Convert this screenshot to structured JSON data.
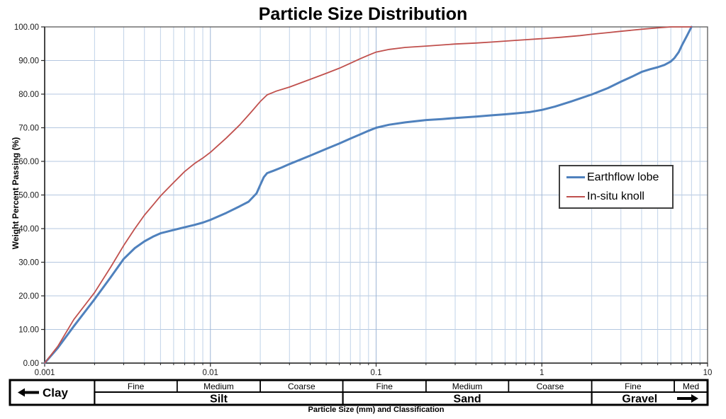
{
  "title": "Particle Size Distribution",
  "y_axis": {
    "title": "Weight Percent Passing (%)",
    "tick_labels": [
      "0.00",
      "10.00",
      "20.00",
      "30.00",
      "40.00",
      "50.00",
      "60.00",
      "70.00",
      "80.00",
      "90.00",
      "100.00"
    ],
    "tick_values": [
      0,
      10,
      20,
      30,
      40,
      50,
      60,
      70,
      80,
      90,
      100
    ]
  },
  "x_axis": {
    "title": "Particle Size (mm) and Classification",
    "tick_labels": [
      "0.001",
      "0.01",
      "0.1",
      "1",
      "10"
    ],
    "tick_values": [
      0.001,
      0.01,
      0.1,
      1,
      10
    ],
    "scale": "log"
  },
  "classification": {
    "groups": [
      {
        "label": "Clay",
        "arrow": "left",
        "from": null,
        "to": 0.002,
        "subs": []
      },
      {
        "label": "Silt",
        "from": 0.002,
        "to": 0.063,
        "subs": [
          {
            "label": "Fine",
            "to": 0.0063
          },
          {
            "label": "Medium",
            "to": 0.02
          },
          {
            "label": "Coarse",
            "to": 0.063
          }
        ]
      },
      {
        "label": "Sand",
        "from": 0.063,
        "to": 2,
        "subs": [
          {
            "label": "Fine",
            "to": 0.2
          },
          {
            "label": "Medium",
            "to": 0.63
          },
          {
            "label": "Coarse",
            "to": 2
          }
        ]
      },
      {
        "label": "Gravel",
        "arrow": "right",
        "from": 2,
        "to": 10,
        "subs": [
          {
            "label": "Fine",
            "to": 6.3
          },
          {
            "label": "Med",
            "to": 10
          }
        ]
      }
    ]
  },
  "colors": {
    "grid_minor": "#c0d2e8",
    "grid_major": "#9fb6d6",
    "grid_horizontal": "#b4c7e0",
    "plot_border": "#595959",
    "axis": "#262626",
    "table_border": "#000000",
    "text": "#000000"
  },
  "chart_data": {
    "type": "line",
    "title": "Particle Size Distribution",
    "xlabel": "Particle Size (mm) and Classification",
    "ylabel": "Weight Percent Passing (%)",
    "x_scale": "log",
    "xlim": [
      0.001,
      10
    ],
    "ylim": [
      0,
      100
    ],
    "grid": true,
    "legend_position": "middle-right",
    "series": [
      {
        "name": "Earthflow lobe",
        "color": "#4f81bd",
        "width": 3,
        "points": [
          [
            0.001,
            0
          ],
          [
            0.0012,
            4.5
          ],
          [
            0.0015,
            11
          ],
          [
            0.002,
            19
          ],
          [
            0.0025,
            25.5
          ],
          [
            0.003,
            31
          ],
          [
            0.0035,
            34.2
          ],
          [
            0.004,
            36.2
          ],
          [
            0.0045,
            37.6
          ],
          [
            0.005,
            38.6
          ],
          [
            0.006,
            39.6
          ],
          [
            0.007,
            40.4
          ],
          [
            0.008,
            41.1
          ],
          [
            0.009,
            41.8
          ],
          [
            0.01,
            42.6
          ],
          [
            0.0125,
            44.7
          ],
          [
            0.015,
            46.6
          ],
          [
            0.017,
            48
          ],
          [
            0.019,
            50.5
          ],
          [
            0.02,
            53
          ],
          [
            0.021,
            55.3
          ],
          [
            0.022,
            56.5
          ],
          [
            0.024,
            57.2
          ],
          [
            0.027,
            58.2
          ],
          [
            0.03,
            59.2
          ],
          [
            0.04,
            61.7
          ],
          [
            0.05,
            63.7
          ],
          [
            0.06,
            65.3
          ],
          [
            0.07,
            66.8
          ],
          [
            0.08,
            68
          ],
          [
            0.09,
            69.1
          ],
          [
            0.1,
            70
          ],
          [
            0.12,
            70.9
          ],
          [
            0.15,
            71.6
          ],
          [
            0.2,
            72.3
          ],
          [
            0.25,
            72.6
          ],
          [
            0.3,
            72.9
          ],
          [
            0.4,
            73.3
          ],
          [
            0.5,
            73.7
          ],
          [
            0.6,
            74
          ],
          [
            0.7,
            74.3
          ],
          [
            0.85,
            74.7
          ],
          [
            1,
            75.3
          ],
          [
            1.2,
            76.3
          ],
          [
            1.5,
            77.8
          ],
          [
            2,
            79.9
          ],
          [
            2.5,
            81.8
          ],
          [
            3,
            83.7
          ],
          [
            3.5,
            85.2
          ],
          [
            4,
            86.6
          ],
          [
            4.5,
            87.4
          ],
          [
            5,
            88
          ],
          [
            5.5,
            88.7
          ],
          [
            6,
            89.7
          ],
          [
            6.3,
            90.7
          ],
          [
            6.7,
            92.5
          ],
          [
            7,
            94.5
          ],
          [
            7.5,
            97.3
          ],
          [
            8,
            100
          ]
        ]
      },
      {
        "name": "In-situ knoll",
        "color": "#c0504d",
        "width": 1.8,
        "points": [
          [
            0.001,
            0
          ],
          [
            0.0012,
            5
          ],
          [
            0.0015,
            13
          ],
          [
            0.002,
            21
          ],
          [
            0.0025,
            28.5
          ],
          [
            0.003,
            35
          ],
          [
            0.0035,
            40
          ],
          [
            0.004,
            44
          ],
          [
            0.0045,
            47
          ],
          [
            0.005,
            49.7
          ],
          [
            0.006,
            53.7
          ],
          [
            0.007,
            57
          ],
          [
            0.008,
            59.3
          ],
          [
            0.009,
            61
          ],
          [
            0.01,
            62.7
          ],
          [
            0.0125,
            67
          ],
          [
            0.015,
            70.8
          ],
          [
            0.0175,
            74.5
          ],
          [
            0.02,
            77.8
          ],
          [
            0.022,
            79.8
          ],
          [
            0.025,
            80.9
          ],
          [
            0.03,
            82.1
          ],
          [
            0.04,
            84.4
          ],
          [
            0.05,
            86.2
          ],
          [
            0.06,
            87.7
          ],
          [
            0.07,
            89.2
          ],
          [
            0.08,
            90.5
          ],
          [
            0.09,
            91.6
          ],
          [
            0.1,
            92.5
          ],
          [
            0.12,
            93.3
          ],
          [
            0.15,
            93.9
          ],
          [
            0.2,
            94.3
          ],
          [
            0.3,
            94.9
          ],
          [
            0.4,
            95.2
          ],
          [
            0.5,
            95.5
          ],
          [
            0.7,
            96
          ],
          [
            1,
            96.5
          ],
          [
            1.3,
            96.9
          ],
          [
            1.7,
            97.4
          ],
          [
            2,
            97.8
          ],
          [
            2.5,
            98.3
          ],
          [
            3,
            98.7
          ],
          [
            4,
            99.3
          ],
          [
            5,
            99.7
          ],
          [
            6,
            100
          ],
          [
            8,
            100
          ]
        ]
      }
    ]
  }
}
